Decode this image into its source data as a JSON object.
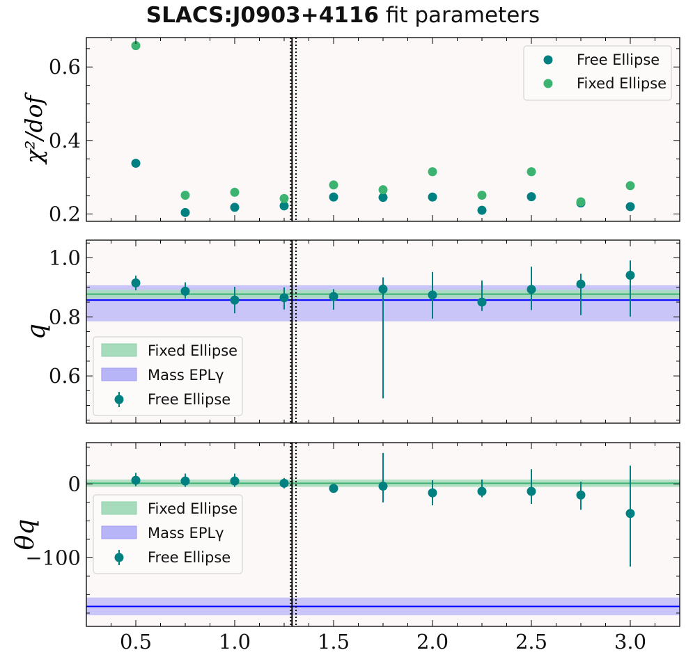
{
  "title": {
    "name": "SLACS:J0903+4116",
    "suffix": "fit parameters"
  },
  "colors": {
    "background": "#fcf8f8",
    "free": "#008080",
    "fixed": "#3cb371",
    "mass": "#0000ff",
    "mass_band": "#b8b4f8",
    "fixed_band": "#a6dcbc",
    "vline": "#000000"
  },
  "vlines": {
    "solid": 1.29,
    "dotted": [
      1.283,
      1.31
    ]
  },
  "chart_data": [
    {
      "type": "scatter",
      "panel": "chi2",
      "ylabel": "χ²/dof",
      "xlim": [
        0.25,
        3.25
      ],
      "ylim": [
        0.18,
        0.68
      ],
      "xticks": [
        0.5,
        1.0,
        1.5,
        2.0,
        2.5,
        3.0
      ],
      "yticks": [
        0.2,
        0.4,
        0.6
      ],
      "ytick_labels": [
        "0.2",
        "0.4",
        "0.6"
      ],
      "legend_position": "top-right",
      "legend": [
        "Free Ellipse",
        "Fixed Ellipse"
      ],
      "x": [
        0.5,
        0.75,
        1.0,
        1.25,
        1.5,
        1.75,
        2.0,
        2.25,
        2.5,
        2.75,
        3.0
      ],
      "series": [
        {
          "name": "Free Ellipse",
          "values": [
            0.338,
            0.204,
            0.218,
            0.222,
            0.246,
            0.245,
            0.246,
            0.21,
            0.247,
            0.23,
            0.22
          ]
        },
        {
          "name": "Fixed Ellipse",
          "values": [
            0.658,
            0.251,
            0.259,
            0.242,
            0.279,
            0.266,
            0.315,
            0.251,
            0.315,
            0.233,
            0.277
          ]
        }
      ]
    },
    {
      "type": "scatter",
      "panel": "q",
      "ylabel": "q",
      "xlim": [
        0.25,
        3.25
      ],
      "ylim": [
        0.44,
        1.06
      ],
      "xticks": [
        0.5,
        1.0,
        1.5,
        2.0,
        2.5,
        3.0
      ],
      "yticks": [
        0.6,
        0.8,
        1.0
      ],
      "ytick_labels": [
        "0.6",
        "0.8",
        "1.0"
      ],
      "legend_position": "bottom-left",
      "legend": [
        "Fixed Ellipse",
        "Mass EPLγ",
        "Free Ellipse"
      ],
      "x": [
        0.5,
        0.75,
        1.0,
        1.25,
        1.5,
        1.75,
        2.0,
        2.25,
        2.5,
        2.75,
        3.0
      ],
      "free": {
        "values": [
          0.915,
          0.887,
          0.857,
          0.865,
          0.869,
          0.894,
          0.874,
          0.85,
          0.893,
          0.911,
          0.941
        ],
        "err_low": [
          0.025,
          0.025,
          0.045,
          0.04,
          0.045,
          0.37,
          0.08,
          0.03,
          0.07,
          0.105,
          0.14
        ],
        "err_high": [
          0.025,
          0.03,
          0.045,
          0.035,
          0.025,
          0.04,
          0.078,
          0.073,
          0.077,
          0.035,
          0.05
        ]
      },
      "fixed_line": {
        "value": 0.877,
        "low": 0.862,
        "high": 0.892
      },
      "mass_line": {
        "value": 0.857,
        "low": 0.785,
        "high": 0.907
      }
    },
    {
      "type": "scatter",
      "panel": "theta",
      "ylabel": "θq",
      "xlim": [
        0.25,
        3.25
      ],
      "ylim": [
        -193,
        56
      ],
      "xticks": [
        0.5,
        1.0,
        1.5,
        2.0,
        2.5,
        3.0
      ],
      "xtick_labels": [
        "0.5",
        "1.0",
        "1.5",
        "2.0",
        "2.5",
        "3.0"
      ],
      "yticks": [
        -100,
        0
      ],
      "ytick_labels": [
        "−100",
        "0"
      ],
      "legend_position": "center-left",
      "legend": [
        "Fixed Ellipse",
        "Mass EPLγ",
        "Free Ellipse"
      ],
      "x": [
        0.5,
        0.75,
        1.0,
        1.25,
        1.5,
        1.75,
        2.0,
        2.25,
        2.5,
        2.75,
        3.0
      ],
      "free": {
        "values": [
          5,
          4,
          4,
          1,
          -6,
          -3,
          -12,
          -10,
          -10,
          -15,
          -40
        ],
        "err_low": [
          8,
          8,
          8,
          7,
          5,
          22,
          17,
          8,
          17,
          20,
          72
        ],
        "err_high": [
          10,
          10,
          10,
          7,
          6,
          45,
          17,
          16,
          30,
          18,
          65
        ]
      },
      "fixed_line": {
        "value": 1,
        "low": -4,
        "high": 6
      },
      "mass_line": {
        "value": -166,
        "low": -178,
        "high": -154
      }
    }
  ]
}
